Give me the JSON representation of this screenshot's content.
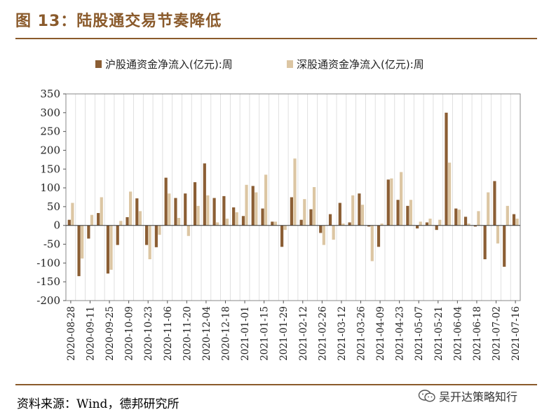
{
  "header": {
    "title": "图 13：陆股通交易节奏降低"
  },
  "footer": {
    "source": "资料来源：Wind，德邦研究所",
    "watermark": "吴开达策略知行"
  },
  "colors": {
    "accent": "#8a5a2b",
    "series_sh": "#8b5e34",
    "series_sz": "#dcc6a3",
    "grid": "#d8d8d8"
  },
  "icons": {
    "watermark_icon": "wechat-icon"
  },
  "chart_data": {
    "type": "bar",
    "title": "",
    "xlabel": "",
    "ylabel": "",
    "ylim": [
      -200,
      350
    ],
    "yticks": [
      "350",
      "300",
      "250",
      "200",
      "150",
      "100",
      "50",
      "0",
      "-50",
      "-100",
      "-150",
      "-200"
    ],
    "legend_position": "top-center",
    "grid": true,
    "x_tick_labels": [
      "2020-08-28",
      "2020-09-11",
      "2020-09-25",
      "2020-10-09",
      "2020-10-23",
      "2020-11-06",
      "2020-11-20",
      "2020-12-04",
      "2020-12-18",
      "2021-01-01",
      "2021-01-15",
      "2021-01-29",
      "2021-02-12",
      "2021-02-26",
      "2021-03-12",
      "2021-03-26",
      "2021-04-09",
      "2021-04-23",
      "2021-05-07",
      "2021-05-21",
      "2021-06-04",
      "2021-06-18",
      "2021-07-02",
      "2021-07-16"
    ],
    "categories": [
      "2020-08-28",
      "2020-09-04",
      "2020-09-11",
      "2020-09-18",
      "2020-09-25",
      "2020-10-02",
      "2020-10-09",
      "2020-10-16",
      "2020-10-23",
      "2020-10-30",
      "2020-11-06",
      "2020-11-13",
      "2020-11-20",
      "2020-11-27",
      "2020-12-04",
      "2020-12-11",
      "2020-12-18",
      "2020-12-25",
      "2021-01-01",
      "2021-01-08",
      "2021-01-15",
      "2021-01-22",
      "2021-01-29",
      "2021-02-05",
      "2021-02-12",
      "2021-02-19",
      "2021-02-26",
      "2021-03-05",
      "2021-03-12",
      "2021-03-19",
      "2021-03-26",
      "2021-04-02",
      "2021-04-09",
      "2021-04-16",
      "2021-04-23",
      "2021-04-30",
      "2021-05-07",
      "2021-05-14",
      "2021-05-21",
      "2021-05-28",
      "2021-06-04",
      "2021-06-11",
      "2021-06-18",
      "2021-06-25",
      "2021-07-02",
      "2021-07-09",
      "2021-07-16"
    ],
    "series": [
      {
        "name": "沪股通资金净流入(亿元):周",
        "values": [
          15,
          -135,
          -35,
          33,
          -128,
          -52,
          22,
          72,
          -52,
          -58,
          127,
          73,
          85,
          115,
          165,
          73,
          78,
          48,
          25,
          105,
          45,
          10,
          -57,
          75,
          15,
          43,
          -20,
          30,
          60,
          8,
          85,
          -3,
          -57,
          122,
          68,
          52,
          -8,
          8,
          -12,
          300,
          45,
          23,
          -3,
          -90,
          118,
          -110,
          30
        ]
      },
      {
        "name": "深股通资金净流入(亿元):周",
        "values": [
          60,
          -88,
          28,
          75,
          -118,
          12,
          90,
          38,
          -90,
          -25,
          85,
          20,
          -28,
          52,
          80,
          8,
          18,
          35,
          108,
          88,
          135,
          10,
          -12,
          178,
          70,
          102,
          -52,
          -38,
          5,
          80,
          55,
          -95,
          5,
          125,
          142,
          68,
          10,
          18,
          15,
          167,
          42,
          5,
          38,
          88,
          -48,
          52,
          18
        ]
      }
    ]
  }
}
